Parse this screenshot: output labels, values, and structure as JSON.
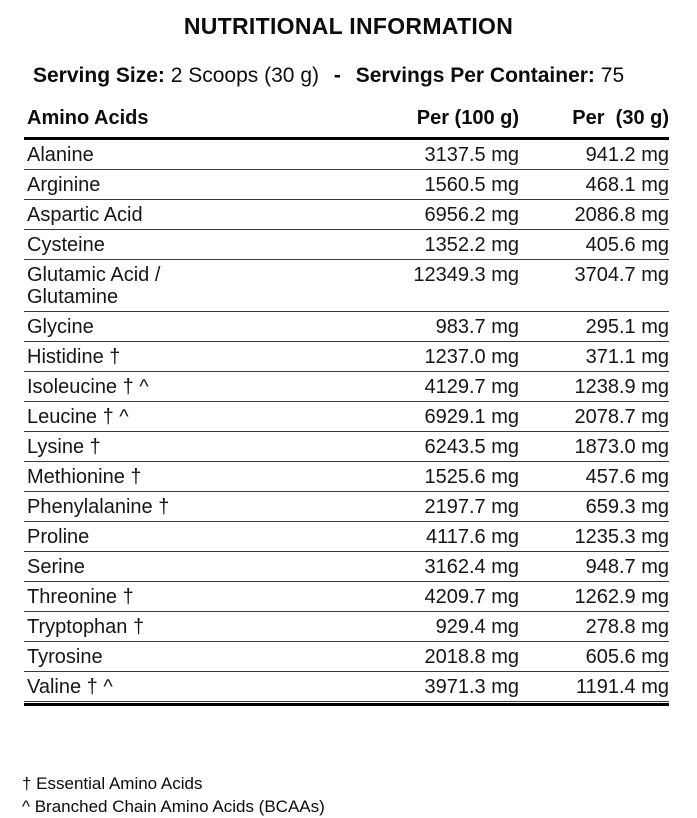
{
  "title": "NUTRITIONAL INFORMATION",
  "serving": {
    "size_label": "Serving Size:",
    "size_value": "2 Scoops (30 g)",
    "separator": "-",
    "container_label": "Servings Per Container:",
    "container_value": "75"
  },
  "table": {
    "headers": {
      "name": "Amino Acids",
      "per100": "Per (100 g)",
      "per30": "Per  (30 g)"
    },
    "rows": [
      {
        "name": "Alanine",
        "per100": "3137.5 mg",
        "per30": "941.2 mg"
      },
      {
        "name": "Arginine",
        "per100": "1560.5 mg",
        "per30": "468.1 mg"
      },
      {
        "name": "Aspartic Acid",
        "per100": "6956.2 mg",
        "per30": "2086.8 mg"
      },
      {
        "name": "Cysteine",
        "per100": "1352.2 mg",
        "per30": "405.6 mg"
      },
      {
        "name": "Glutamic Acid /\nGlutamine",
        "per100": "12349.3 mg",
        "per30": "3704.7 mg"
      },
      {
        "name": "Glycine",
        "per100": "983.7 mg",
        "per30": "295.1 mg"
      },
      {
        "name": "Histidine †",
        "per100": "1237.0 mg",
        "per30": "371.1 mg"
      },
      {
        "name": "Isoleucine † ^",
        "per100": "4129.7 mg",
        "per30": "1238.9 mg"
      },
      {
        "name": "Leucine † ^",
        "per100": "6929.1 mg",
        "per30": "2078.7 mg"
      },
      {
        "name": "Lysine †",
        "per100": "6243.5 mg",
        "per30": "1873.0 mg"
      },
      {
        "name": "Methionine †",
        "per100": "1525.6 mg",
        "per30": "457.6 mg"
      },
      {
        "name": "Phenylalanine †",
        "per100": "2197.7 mg",
        "per30": "659.3 mg"
      },
      {
        "name": "Proline",
        "per100": "4117.6 mg",
        "per30": "1235.3 mg"
      },
      {
        "name": "Serine",
        "per100": "3162.4 mg",
        "per30": "948.7 mg"
      },
      {
        "name": "Threonine †",
        "per100": "4209.7 mg",
        "per30": "1262.9 mg"
      },
      {
        "name": "Tryptophan †",
        "per100": "929.4 mg",
        "per30": "278.8 mg"
      },
      {
        "name": "Tyrosine",
        "per100": "2018.8 mg",
        "per30": "605.6 mg"
      },
      {
        "name": "Valine † ^",
        "per100": "3971.3 mg",
        "per30": "1191.4 mg"
      }
    ]
  },
  "footnotes": [
    "† Essential Amino Acids",
    "^ Branched Chain Amino Acids (BCAAs)"
  ]
}
